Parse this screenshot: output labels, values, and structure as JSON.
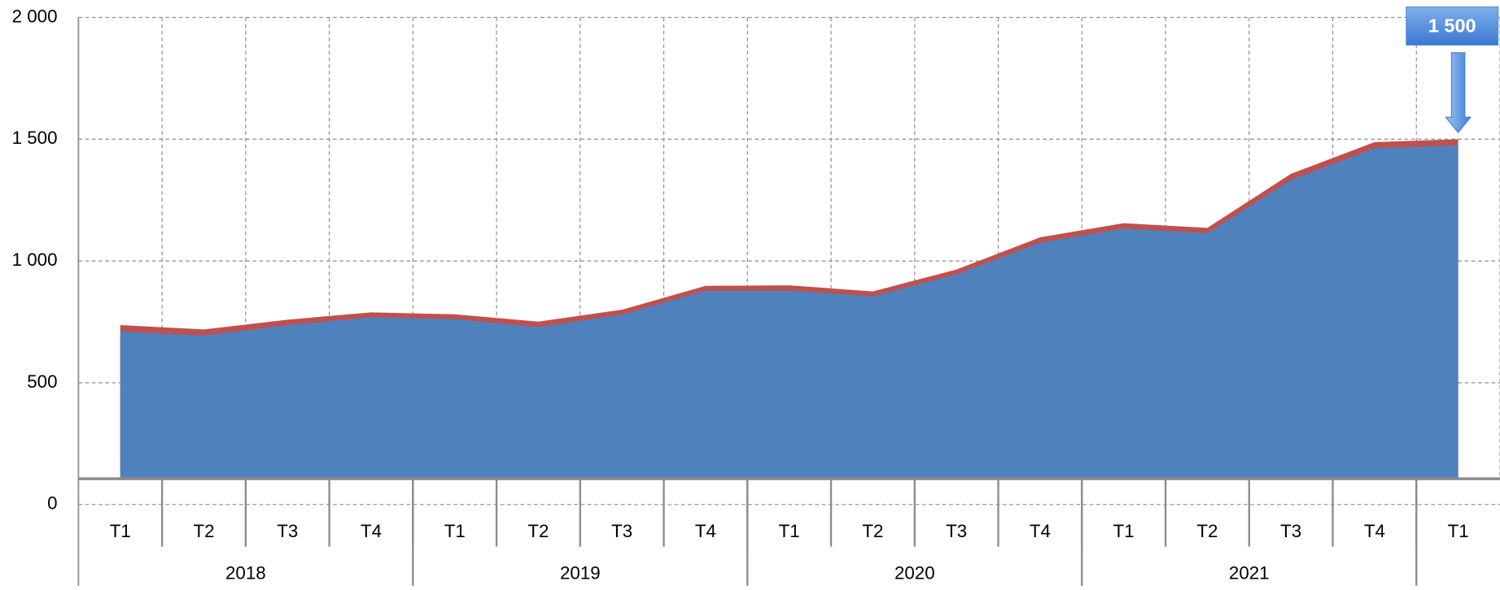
{
  "chart_data": {
    "type": "stacked_area",
    "categories": [
      "T1",
      "T2",
      "T3",
      "T4",
      "T1",
      "T2",
      "T3",
      "T4",
      "T1",
      "T2",
      "T3",
      "T4",
      "T1",
      "T2",
      "T3",
      "T4",
      "T1"
    ],
    "groups": [
      {
        "label": "2018",
        "span": 4
      },
      {
        "label": "2019",
        "span": 4
      },
      {
        "label": "2020",
        "span": 4
      },
      {
        "label": "2021",
        "span": 4
      },
      {
        "label": null,
        "span": 1
      }
    ],
    "series": [
      {
        "color": "#4f81bd",
        "values": [
          710,
          694,
          737,
          769,
          761,
          729,
          780,
          878,
          878,
          855,
          945,
          1075,
          1133,
          1114,
          1333,
          1463,
          1475
        ]
      },
      {
        "color": "#c0504d",
        "values": [
          27,
          25,
          22,
          20,
          20,
          22,
          20,
          20,
          22,
          20,
          20,
          22,
          22,
          22,
          25,
          25,
          25
        ]
      }
    ],
    "ylim": [
      0,
      2000
    ],
    "yticks": [
      0,
      500,
      {
        "value": 1000,
        "label": "1 000"
      },
      {
        "value": 1500,
        "label": "1 500"
      },
      {
        "value": 2000,
        "label": "2 000"
      }
    ],
    "grid": true,
    "annotation": {
      "value": 1500,
      "label": "1 500"
    }
  }
}
